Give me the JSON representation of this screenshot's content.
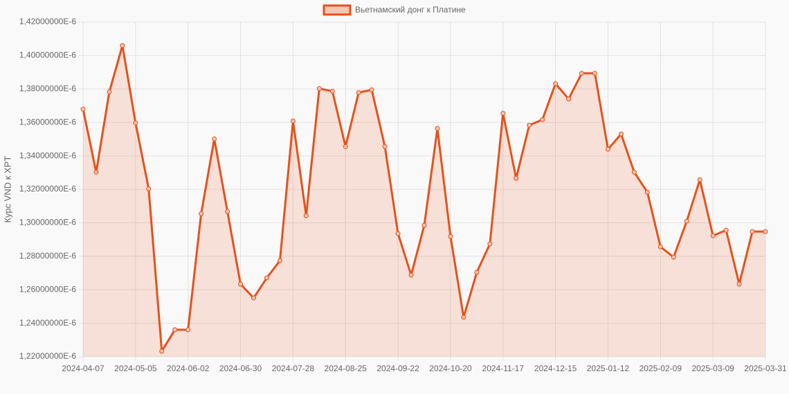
{
  "chart_data": {
    "type": "line",
    "y_axis_label": "Курс VND к XPT",
    "categories": [
      "2024-04-07",
      null,
      null,
      null,
      "2024-05-05",
      null,
      null,
      null,
      "2024-06-02",
      null,
      null,
      null,
      "2024-06-30",
      null,
      null,
      null,
      "2024-07-28",
      null,
      null,
      null,
      "2024-08-25",
      null,
      null,
      null,
      "2024-09-22",
      null,
      null,
      null,
      "2024-10-20",
      null,
      null,
      null,
      "2024-11-17",
      null,
      null,
      null,
      "2024-12-15",
      null,
      null,
      null,
      "2025-01-12",
      null,
      null,
      null,
      "2025-02-09",
      null,
      null,
      null,
      "2025-03-09",
      null,
      null,
      null,
      "2025-03-31"
    ],
    "series": [
      {
        "name": "Вьетнамский донг к Платине",
        "color": "#e8501a",
        "values": [
          1.368e-06,
          1.3303e-06,
          1.3783e-06,
          1.406e-06,
          1.3597e-06,
          1.3204e-06,
          1.2233e-06,
          1.2361e-06,
          1.2361e-06,
          1.3055e-06,
          1.3502e-06,
          1.3068e-06,
          1.2634e-06,
          1.2551e-06,
          1.2671e-06,
          1.2774e-06,
          1.3609e-06,
          1.3043e-06,
          1.3803e-06,
          1.3787e-06,
          1.3456e-06,
          1.3779e-06,
          1.3795e-06,
          1.3456e-06,
          1.2936e-06,
          1.2688e-06,
          1.2985e-06,
          1.3564e-06,
          1.2919e-06,
          1.2436e-06,
          1.2704e-06,
          1.2874e-06,
          1.3655e-06,
          1.3266e-06,
          1.3584e-06,
          1.3617e-06,
          1.3832e-06,
          1.3741e-06,
          1.3894e-06,
          1.3894e-06,
          1.344e-06,
          1.3531e-06,
          1.3303e-06,
          1.3183e-06,
          1.2857e-06,
          1.2795e-06,
          1.301e-06,
          1.3258e-06,
          1.2923e-06,
          1.2956e-06,
          1.2634e-06,
          1.2948e-06,
          1.2948e-06
        ]
      }
    ],
    "ylim": [
      1.22e-06,
      1.42e-06
    ],
    "yticks": [
      {
        "value": 1.22e-06,
        "label": "1,22000000E-6"
      },
      {
        "value": 1.24e-06,
        "label": "1,24000000E-6"
      },
      {
        "value": 1.26e-06,
        "label": "1,26000000E-6"
      },
      {
        "value": 1.28e-06,
        "label": "1,28000000E-6"
      },
      {
        "value": 1.3e-06,
        "label": "1,30000000E-6"
      },
      {
        "value": 1.32e-06,
        "label": "1,32000000E-6"
      },
      {
        "value": 1.34e-06,
        "label": "1,34000000E-6"
      },
      {
        "value": 1.36e-06,
        "label": "1,36000000E-6"
      },
      {
        "value": 1.38e-06,
        "label": "1,38000000E-6"
      },
      {
        "value": 1.4e-06,
        "label": "1,40000000E-6"
      },
      {
        "value": 1.42e-06,
        "label": "1,42000000E-6"
      }
    ],
    "grid": true,
    "fill": true,
    "legend": "top"
  }
}
